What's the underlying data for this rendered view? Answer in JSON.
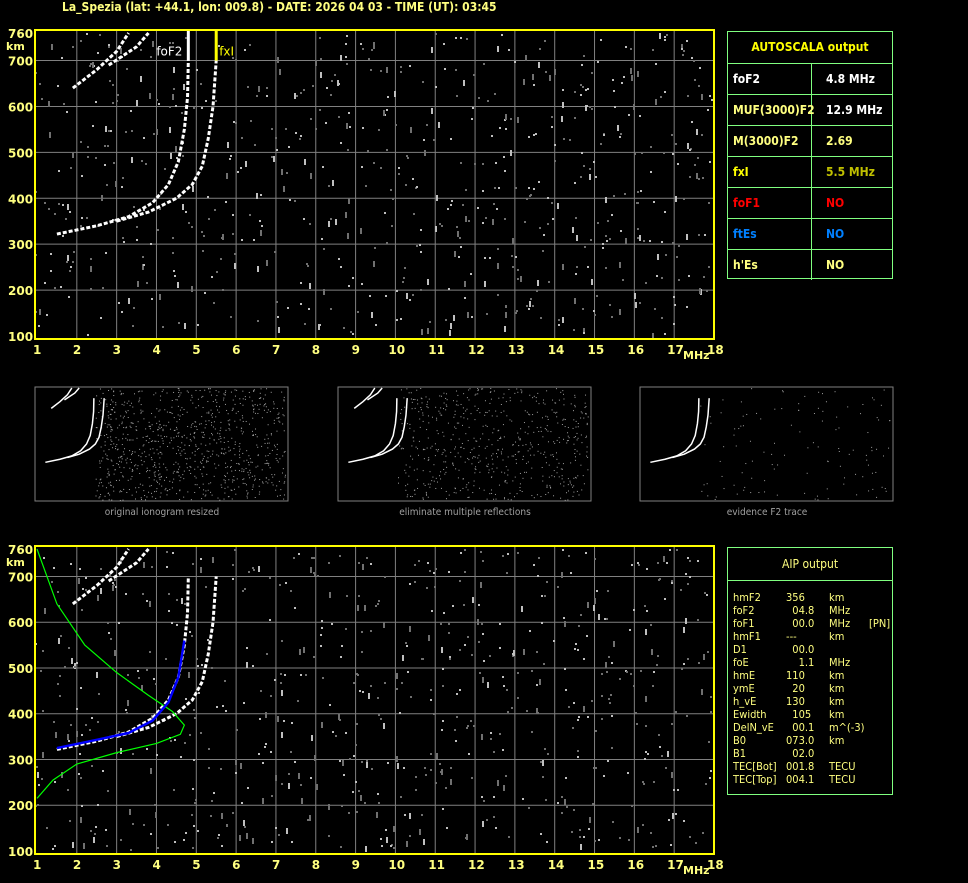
{
  "header": {
    "title": "La_Spezia (lat: +44.1, lon: 009.8) - DATE: 2026 04 03 - TIME (UT): 03:45"
  },
  "colors": {
    "frame": "#ffff00",
    "grid": "#808080",
    "trace": "#ffffff",
    "panel_border": "#80ff80",
    "profile": "#00ff00",
    "fitted_trace": "#0000ff"
  },
  "chart_data": [
    {
      "type": "scatter",
      "name": "ionogram",
      "xlabel": "MHz",
      "ylabel": "km",
      "xlim": [
        1,
        18
      ],
      "ylim": [
        100,
        760
      ],
      "xticks": [
        "1",
        "2",
        "3",
        "4",
        "5",
        "6",
        "7",
        "8",
        "9",
        "10",
        "11",
        "12",
        "13",
        "14",
        "15",
        "16",
        "17",
        "18"
      ],
      "yticks": [
        "100",
        "200",
        "300",
        "400",
        "500",
        "600",
        "700",
        "760"
      ],
      "grid": true,
      "markers": [
        {
          "label": "foF2",
          "x": 4.8,
          "color": "#ffffff"
        },
        {
          "label": "fxI",
          "x": 5.5,
          "color": "#ffff00"
        }
      ],
      "traces": [
        {
          "mode": "O",
          "points": [
            [
              1.5,
              322
            ],
            [
              2.5,
              340
            ],
            [
              3.3,
              360
            ],
            [
              3.9,
              390
            ],
            [
              4.3,
              430
            ],
            [
              4.55,
              480
            ],
            [
              4.7,
              550
            ],
            [
              4.78,
              620
            ],
            [
              4.8,
              700
            ]
          ]
        },
        {
          "mode": "X",
          "points": [
            [
              3.0,
              350
            ],
            [
              3.8,
              370
            ],
            [
              4.5,
              400
            ],
            [
              4.9,
              430
            ],
            [
              5.15,
              470
            ],
            [
              5.3,
              530
            ],
            [
              5.42,
              600
            ],
            [
              5.5,
              700
            ]
          ]
        },
        {
          "mode": "2nd-order",
          "points": [
            [
              1.9,
              640
            ],
            [
              2.5,
              680
            ],
            [
              3.0,
              720
            ],
            [
              3.3,
              760
            ]
          ]
        },
        {
          "mode": "2nd-order-X",
          "points": [
            [
              2.8,
              690
            ],
            [
              3.5,
              730
            ],
            [
              3.8,
              760
            ]
          ]
        }
      ]
    },
    {
      "type": "line",
      "name": "ionogram-with-profile",
      "xlabel": "MHz",
      "ylabel": "km",
      "xlim": [
        1,
        18
      ],
      "ylim": [
        100,
        760
      ],
      "xticks": [
        "1",
        "2",
        "3",
        "4",
        "5",
        "6",
        "7",
        "8",
        "9",
        "10",
        "11",
        "12",
        "13",
        "14",
        "15",
        "16",
        "17",
        "18"
      ],
      "yticks": [
        "100",
        "200",
        "300",
        "400",
        "500",
        "600",
        "700",
        "760"
      ],
      "grid": true,
      "profile": [
        [
          1.0,
          760
        ],
        [
          1.5,
          640
        ],
        [
          2.2,
          550
        ],
        [
          3.0,
          490
        ],
        [
          3.8,
          440
        ],
        [
          4.4,
          405
        ],
        [
          4.7,
          375
        ],
        [
          4.6,
          355
        ],
        [
          4.0,
          335
        ],
        [
          3.0,
          315
        ],
        [
          2.0,
          290
        ],
        [
          1.4,
          255
        ],
        [
          1.0,
          215
        ]
      ],
      "fitted_trace": [
        [
          1.5,
          325
        ],
        [
          2.5,
          343
        ],
        [
          3.3,
          358
        ],
        [
          3.9,
          385
        ],
        [
          4.3,
          425
        ],
        [
          4.55,
          480
        ],
        [
          4.7,
          560
        ]
      ]
    }
  ],
  "autoscala": {
    "title": "AUTOSCALA output",
    "rows": [
      {
        "key": "foF2",
        "value": "4.8 MHz",
        "key_color": "#ffffff",
        "value_color": "#ffffff"
      },
      {
        "key": "MUF(3000)F2",
        "value": "12.9 MHz",
        "key_color": "#ffff80",
        "value_color": "#ffffff"
      },
      {
        "key": "M(3000)F2",
        "value": "2.69",
        "key_color": "#ffff80",
        "value_color": "#ffff80"
      },
      {
        "key": "fxI",
        "value": "5.5 MHz",
        "key_color": "#ffff00",
        "value_color": "#c0c000"
      },
      {
        "key": "foF1",
        "value": "NO",
        "key_color": "#ff0000",
        "value_color": "#ff0000"
      },
      {
        "key": "ftEs",
        "value": "NO",
        "key_color": "#0080ff",
        "value_color": "#0080ff"
      },
      {
        "key": "h'Es",
        "value": "NO",
        "key_color": "#ffff80",
        "value_color": "#ffff80"
      }
    ]
  },
  "thumbnails": [
    {
      "caption": "original ionogram resized"
    },
    {
      "caption": "eliminate multiple reflections"
    },
    {
      "caption": "evidence F2 trace"
    }
  ],
  "aip": {
    "title": "AIP output",
    "rows": [
      [
        "hmF2",
        "356",
        "km",
        ""
      ],
      [
        "foF2",
        "  04.8",
        "MHz",
        ""
      ],
      [
        "foF1",
        "  00.0",
        "MHz",
        "[PN]"
      ],
      [
        "hmF1",
        "---",
        "km",
        ""
      ],
      [
        "D1",
        "  00.0",
        "",
        ""
      ],
      [
        "foE",
        "    1.1",
        "MHz",
        ""
      ],
      [
        "hmE",
        "110",
        "km",
        ""
      ],
      [
        "ymE",
        "  20",
        "km",
        ""
      ],
      [
        "h_vE",
        "130",
        "km",
        ""
      ],
      [
        "Ewidth",
        "  105",
        "km",
        ""
      ],
      [
        "DelN_vE",
        "  00.1",
        "m^(-3)",
        ""
      ],
      [
        "B0",
        "073.0",
        "km",
        ""
      ],
      [
        "B1",
        "  02.0",
        "",
        ""
      ],
      [
        "TEC[Bot]",
        "001.8",
        "TECU",
        ""
      ],
      [
        "TEC[Top]",
        "004.1",
        "TECU",
        ""
      ]
    ]
  }
}
